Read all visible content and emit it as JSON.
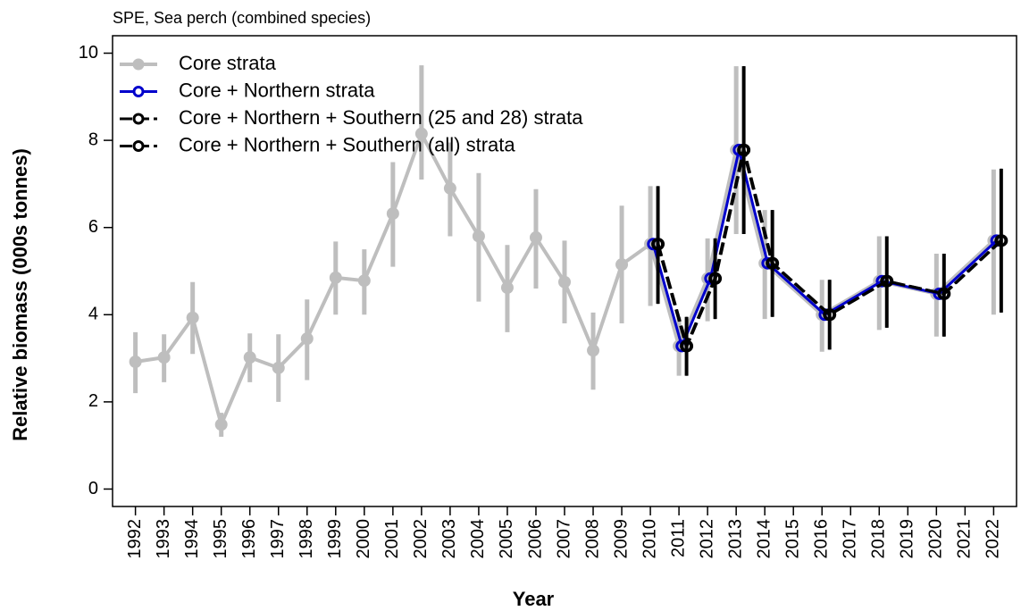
{
  "chart_data": {
    "type": "line",
    "title": "SPE, Sea perch (combined species)",
    "x_label": "Year",
    "y_label": "Relative biomass (000s tonnes)",
    "xlim": [
      1991.2,
      2022.8
    ],
    "xticks": [
      1992,
      1993,
      1994,
      1995,
      1996,
      1997,
      1998,
      1999,
      2000,
      2001,
      2002,
      2003,
      2004,
      2005,
      2006,
      2007,
      2008,
      2009,
      2010,
      2011,
      2012,
      2013,
      2014,
      2015,
      2016,
      2017,
      2018,
      2019,
      2020,
      2021,
      2022
    ],
    "ylim": [
      -0.4,
      10.4
    ],
    "yticks": [
      0,
      2,
      4,
      6,
      8,
      10
    ],
    "legend": "top-left",
    "series": [
      {
        "name": "Core strata",
        "color": "#bebebe",
        "x": [
          1992,
          1993,
          1994,
          1995,
          1996,
          1997,
          1998,
          1999,
          2000,
          2001,
          2002,
          2003,
          2004,
          2005,
          2006,
          2007,
          2008,
          2009,
          2010,
          2011,
          2012,
          2013,
          2014,
          2016,
          2018,
          2020,
          2022
        ],
        "values": [
          2.92,
          3.02,
          3.93,
          1.48,
          3.02,
          2.78,
          3.45,
          4.85,
          4.78,
          6.32,
          8.15,
          6.9,
          5.8,
          4.62,
          5.77,
          4.75,
          3.18,
          5.15,
          5.62,
          3.28,
          4.83,
          7.78,
          5.18,
          4.0,
          4.77,
          4.48,
          5.7
        ],
        "lower": [
          2.2,
          2.45,
          3.1,
          1.2,
          2.45,
          2.0,
          2.5,
          4.0,
          4.0,
          5.1,
          7.1,
          5.8,
          4.3,
          3.6,
          4.6,
          3.8,
          2.28,
          3.8,
          4.2,
          2.6,
          3.85,
          5.85,
          3.9,
          3.15,
          3.65,
          3.5,
          4.0
        ],
        "upper": [
          3.6,
          3.55,
          4.75,
          1.75,
          3.57,
          3.55,
          4.35,
          5.68,
          5.5,
          7.5,
          9.72,
          7.95,
          7.25,
          5.6,
          6.88,
          5.7,
          4.05,
          6.5,
          6.95,
          3.95,
          5.75,
          9.7,
          6.4,
          4.8,
          5.8,
          5.4,
          7.33
        ]
      },
      {
        "name": "Core + Northern strata",
        "color": "#0000cc",
        "x": [
          2010,
          2011,
          2012,
          2013,
          2014,
          2016,
          2018,
          2020,
          2022
        ],
        "values": [
          5.62,
          3.28,
          4.83,
          7.78,
          5.18,
          4.0,
          4.77,
          4.48,
          5.7
        ]
      },
      {
        "name": "Core + Northern + Southern (25 and 28) strata",
        "color": "#000000",
        "x": [
          2010,
          2011,
          2012,
          2013,
          2014,
          2016,
          2018,
          2020,
          2022
        ],
        "values": [
          5.62,
          3.28,
          4.83,
          7.78,
          5.18,
          4.0,
          4.77,
          4.48,
          5.7
        ],
        "lower": [
          4.25,
          2.6,
          3.9,
          5.85,
          3.95,
          3.2,
          3.7,
          3.5,
          4.05
        ],
        "upper": [
          6.95,
          3.95,
          5.75,
          9.7,
          6.4,
          4.8,
          5.8,
          5.4,
          7.35
        ]
      },
      {
        "name": "Core + Northern + Southern (all) strata",
        "color": "#000000",
        "x": [
          2010,
          2011,
          2012,
          2013,
          2014,
          2016,
          2018,
          2020,
          2022
        ],
        "values": [
          5.62,
          3.28,
          4.83,
          7.78,
          5.18,
          4.0,
          4.77,
          4.48,
          5.7
        ],
        "lower": [
          4.25,
          2.6,
          3.9,
          5.85,
          3.95,
          3.2,
          3.7,
          3.5,
          4.05
        ],
        "upper": [
          6.95,
          3.95,
          5.75,
          9.7,
          6.4,
          4.8,
          5.8,
          5.4,
          7.35
        ]
      }
    ]
  }
}
